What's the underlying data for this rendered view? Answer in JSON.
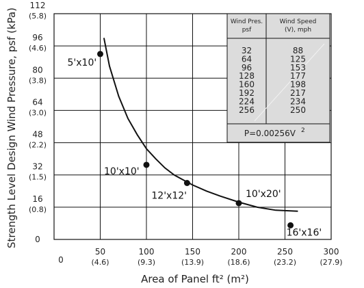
{
  "chart_data": {
    "type": "scatter",
    "xlabel": "Area of Panel  ft² (m²)",
    "ylabel": "Strength Level Design Wind Pressure, psf (kPa)",
    "xlim": [
      0,
      300
    ],
    "ylim": [
      0,
      112
    ],
    "grid": true,
    "x_ticks": [
      {
        "value": 0,
        "label": "0",
        "sub": ""
      },
      {
        "value": 50,
        "label": "50",
        "sub": "(4.6)"
      },
      {
        "value": 100,
        "label": "100",
        "sub": "(9.3)"
      },
      {
        "value": 150,
        "label": "150",
        "sub": "(13.9)"
      },
      {
        "value": 200,
        "label": "200",
        "sub": "(18.6)"
      },
      {
        "value": 250,
        "label": "250",
        "sub": "(23.2)"
      },
      {
        "value": 300,
        "label": "300",
        "sub": "(27.9)"
      }
    ],
    "y_ticks": [
      {
        "value": 0,
        "label": "0",
        "sub": ""
      },
      {
        "value": 16,
        "label": "16",
        "sub": "(0.8)"
      },
      {
        "value": 32,
        "label": "32",
        "sub": "(1.5)"
      },
      {
        "value": 48,
        "label": "48",
        "sub": "(2.2)"
      },
      {
        "value": 64,
        "label": "64",
        "sub": "(3.0)"
      },
      {
        "value": 80,
        "label": "80",
        "sub": "(3.8)"
      },
      {
        "value": 96,
        "label": "96",
        "sub": "(4.6)"
      },
      {
        "value": 112,
        "label": "112",
        "sub": "(5.8)"
      }
    ],
    "points": [
      {
        "x": 50,
        "y": 92,
        "label": "5'x10'"
      },
      {
        "x": 100,
        "y": 37,
        "label": "10'x10'"
      },
      {
        "x": 144,
        "y": 28,
        "label": "12'x12'"
      },
      {
        "x": 200,
        "y": 18,
        "label": "10'x20'"
      },
      {
        "x": 256,
        "y": 7,
        "label": "16'x16'"
      }
    ],
    "curve": [
      {
        "x": 54,
        "y": 100
      },
      {
        "x": 60,
        "y": 86
      },
      {
        "x": 70,
        "y": 71
      },
      {
        "x": 80,
        "y": 60
      },
      {
        "x": 90,
        "y": 52
      },
      {
        "x": 100,
        "y": 45
      },
      {
        "x": 110,
        "y": 40
      },
      {
        "x": 120,
        "y": 35.5
      },
      {
        "x": 130,
        "y": 32
      },
      {
        "x": 140,
        "y": 29.5
      },
      {
        "x": 150,
        "y": 27
      },
      {
        "x": 165,
        "y": 24
      },
      {
        "x": 180,
        "y": 21.5
      },
      {
        "x": 200,
        "y": 18.5
      },
      {
        "x": 220,
        "y": 16
      },
      {
        "x": 240,
        "y": 14.5
      },
      {
        "x": 264,
        "y": 14
      }
    ],
    "table": {
      "header_col1": [
        "Wind Pres.",
        "psf"
      ],
      "header_col2": [
        "Wind Speed",
        "(V), mph"
      ],
      "pressure_psf": [
        "32",
        "64",
        "96",
        "128",
        "160",
        "192",
        "224",
        "256"
      ],
      "speed_mph": [
        "88",
        "125",
        "153",
        "177",
        "198",
        "217",
        "234",
        "250"
      ],
      "formula": "P=0.00256V",
      "formula_exp": "2"
    }
  }
}
